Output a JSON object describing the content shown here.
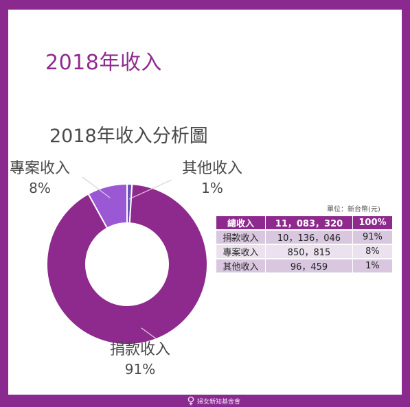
{
  "page": {
    "title": "2018年收入"
  },
  "chart_data": {
    "type": "pie",
    "title": "2018年收入分析圖",
    "categories": [
      "捐款收入",
      "專案收入",
      "其他收入"
    ],
    "values": [
      91,
      8,
      1
    ],
    "colors": [
      "#8e2a8e",
      "#9b58d4",
      "#6c55b8"
    ],
    "labels": [
      {
        "name": "捐款收入",
        "pct": "91%"
      },
      {
        "name": "專案收入",
        "pct": "8%"
      },
      {
        "name": "其他收入",
        "pct": "1%"
      }
    ]
  },
  "table": {
    "unit": "單位：新台幣(元)",
    "header": [
      "總收入",
      "11，083，320",
      "100%"
    ],
    "rows": [
      [
        "捐款收入",
        "10，136，046",
        "91%"
      ],
      [
        "專案收入",
        "850，815",
        "8%"
      ],
      [
        "其他收入",
        "96，459",
        "1%"
      ]
    ]
  },
  "footer": {
    "logo_text": "婦女新知基金會"
  }
}
